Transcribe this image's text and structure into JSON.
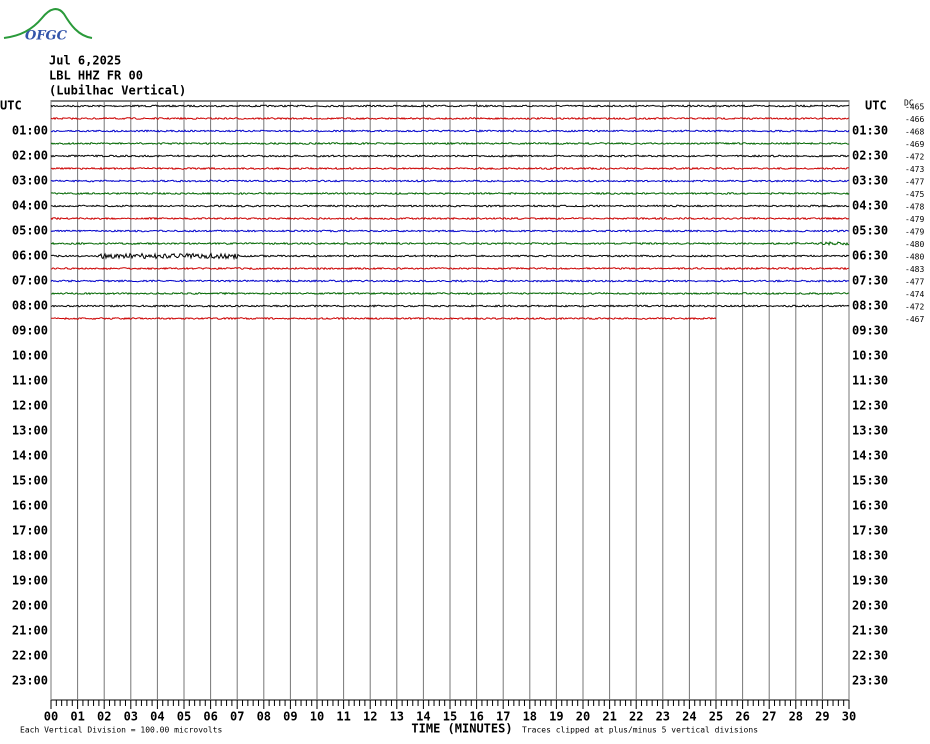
{
  "header": {
    "logo": "OFGC",
    "date": "Jul 6,2025",
    "station": "LBL HHZ FR 00",
    "location": "(Lubilhac Vertical)"
  },
  "left_labels": [
    "UTC",
    "01:00",
    "02:00",
    "03:00",
    "04:00",
    "05:00",
    "06:00",
    "07:00",
    "08:00",
    "09:00",
    "10:00",
    "11:00",
    "12:00",
    "13:00",
    "14:00",
    "15:00",
    "16:00",
    "17:00",
    "18:00",
    "19:00",
    "20:00",
    "21:00",
    "22:00",
    "23:00"
  ],
  "right_labels": [
    "UTC",
    "01:30",
    "02:30",
    "03:30",
    "04:30",
    "05:30",
    "06:30",
    "07:30",
    "08:30",
    "09:30",
    "10:30",
    "11:30",
    "12:30",
    "13:30",
    "14:30",
    "15:30",
    "16:30",
    "17:30",
    "18:30",
    "19:30",
    "20:30",
    "21:30",
    "22:30",
    "23:30"
  ],
  "xlim": [
    0,
    30
  ],
  "xticks": [
    {
      "value": 0,
      "label": "00"
    },
    {
      "value": 1,
      "label": "01"
    },
    {
      "value": 2,
      "label": "02"
    },
    {
      "value": 3,
      "label": "03"
    },
    {
      "value": 4,
      "label": "04"
    },
    {
      "value": 5,
      "label": "05"
    },
    {
      "value": 6,
      "label": "06"
    },
    {
      "value": 7,
      "label": "07"
    },
    {
      "value": 8,
      "label": "08"
    },
    {
      "value": 9,
      "label": "09"
    },
    10,
    11,
    12,
    13,
    14,
    15,
    16,
    17,
    18,
    19,
    20,
    21,
    22,
    23,
    24,
    25,
    26,
    27,
    28,
    29,
    30
  ],
  "x_label": "TIME (MINUTES)",
  "footer_left": "Each Vertical Division =  100.00 microvolts",
  "footer_right": "Traces clipped at plus/minus 5 vertical divisions",
  "dc_label": "DC",
  "traces": [
    {
      "color": "#000000",
      "offset": "-465",
      "span": [
        0,
        30
      ]
    },
    {
      "color": "#cc0000",
      "offset": "-466",
      "span": [
        0,
        30
      ]
    },
    {
      "color": "#0000cc",
      "offset": "-468",
      "span": [
        0,
        30
      ]
    },
    {
      "color": "#006600",
      "offset": "-469",
      "span": [
        0,
        30
      ]
    },
    {
      "color": "#000000",
      "offset": "-472",
      "span": [
        0,
        30
      ]
    },
    {
      "color": "#cc0000",
      "offset": "-473",
      "span": [
        0,
        30
      ]
    },
    {
      "color": "#0000cc",
      "offset": "-477",
      "span": [
        0,
        30
      ]
    },
    {
      "color": "#006600",
      "offset": "-475",
      "span": [
        0,
        30
      ]
    },
    {
      "color": "#000000",
      "offset": "-478",
      "span": [
        0,
        30
      ]
    },
    {
      "color": "#cc0000",
      "offset": "-479",
      "span": [
        0,
        30
      ]
    },
    {
      "color": "#0000cc",
      "offset": "-479",
      "span": [
        0,
        30
      ]
    },
    {
      "color": "#006600",
      "offset": "-480",
      "span": [
        0,
        30
      ]
    },
    {
      "color": "#000000",
      "offset": "-480",
      "span": [
        0,
        30
      ]
    },
    {
      "color": "#cc0000",
      "offset": "-483",
      "span": [
        0,
        30
      ]
    },
    {
      "color": "#0000cc",
      "offset": "-477",
      "span": [
        0,
        30
      ]
    },
    {
      "color": "#006600",
      "offset": "-474",
      "span": [
        0,
        30
      ]
    },
    {
      "color": "#000000",
      "offset": "-472",
      "span": [
        0,
        30
      ]
    },
    {
      "color": "#cc0000",
      "offset": "-467",
      "span": [
        0,
        25
      ]
    }
  ]
}
